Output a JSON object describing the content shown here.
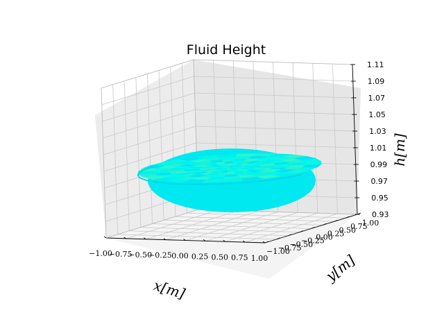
{
  "chart_data": {
    "type": "surface",
    "title": "Fluid Height",
    "xlabel": "x[m]",
    "ylabel": "y[m]",
    "zlabel": "h[m]",
    "xlim": [
      -1.0,
      1.0
    ],
    "ylim": [
      -1.0,
      1.0
    ],
    "zlim": [
      0.93,
      1.11
    ],
    "x_ticks": [
      "−1.00",
      "−0.75",
      "−0.50",
      "−0.25",
      "0.00",
      "0.25",
      "0.50",
      "0.75",
      "1.00"
    ],
    "y_ticks": [
      "−1.00",
      "−0.75",
      "−0.50",
      "−0.25",
      "0.00",
      "0.25",
      "0.50",
      "0.75",
      "1.00"
    ],
    "z_ticks": [
      "0.93",
      "0.95",
      "0.97",
      "0.99",
      "1.01",
      "1.03",
      "1.05",
      "1.07",
      "1.09",
      "1.11"
    ],
    "surface": {
      "domain": "unit disk",
      "approx_height": 1.0,
      "colormap": "jet-like (cyan to aquamarine)",
      "colors": [
        "#00f0f0",
        "#10f4e4",
        "#30f4cc",
        "#00e4f4",
        "#20f0dc",
        "#00f8e8"
      ]
    },
    "grid": true,
    "pane_color": "#f2f2f2"
  }
}
